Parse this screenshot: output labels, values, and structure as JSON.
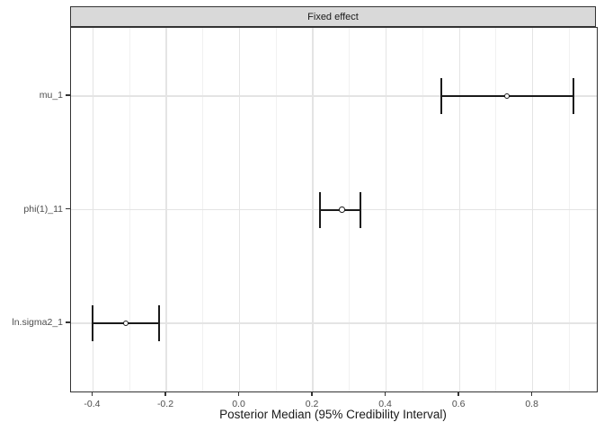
{
  "chart_data": {
    "type": "errorbar",
    "facet_title": "Fixed effect",
    "xlabel": "Posterior Median (95% Credibility Interval)",
    "ylabel": "",
    "categories": [
      "mu_1",
      "phi(1)_11",
      "ln.sigma2_1"
    ],
    "series": [
      {
        "param": "mu_1",
        "median": 0.73,
        "lower": 0.55,
        "upper": 0.91
      },
      {
        "param": "phi(1)_11",
        "median": 0.28,
        "lower": 0.22,
        "upper": 0.33
      },
      {
        "param": "ln.sigma2_1",
        "median": -0.31,
        "lower": -0.4,
        "upper": -0.22
      }
    ],
    "xlim": [
      -0.46,
      0.975
    ],
    "x_tick_values": [
      -0.4,
      -0.2,
      0.0,
      0.2,
      0.4,
      0.6,
      0.8
    ],
    "x_tick_labels": [
      "-0.4",
      "-0.2",
      "0.0",
      "0.2",
      "0.4",
      "0.6",
      "0.8"
    ],
    "x_minor_values": [
      -0.3,
      -0.1,
      0.1,
      0.3,
      0.5,
      0.7,
      0.9
    ],
    "grid": true,
    "legend": "none"
  },
  "colors": {
    "figure_background": "#FFFFFF",
    "errorbar": "#1A1A1A",
    "point_fill": "#FFFFFF",
    "strip_fill": "#D9D9D9",
    "strip_border": "#333333",
    "strip_text": "#1A1A1A",
    "panel_border": "#333333",
    "grid_major": "#E4E4E4",
    "grid_minor": "#F1F1F1",
    "axis_tick": "#333333",
    "axis_text": "#4D4D4D",
    "title_text": "#1A1A1A"
  }
}
